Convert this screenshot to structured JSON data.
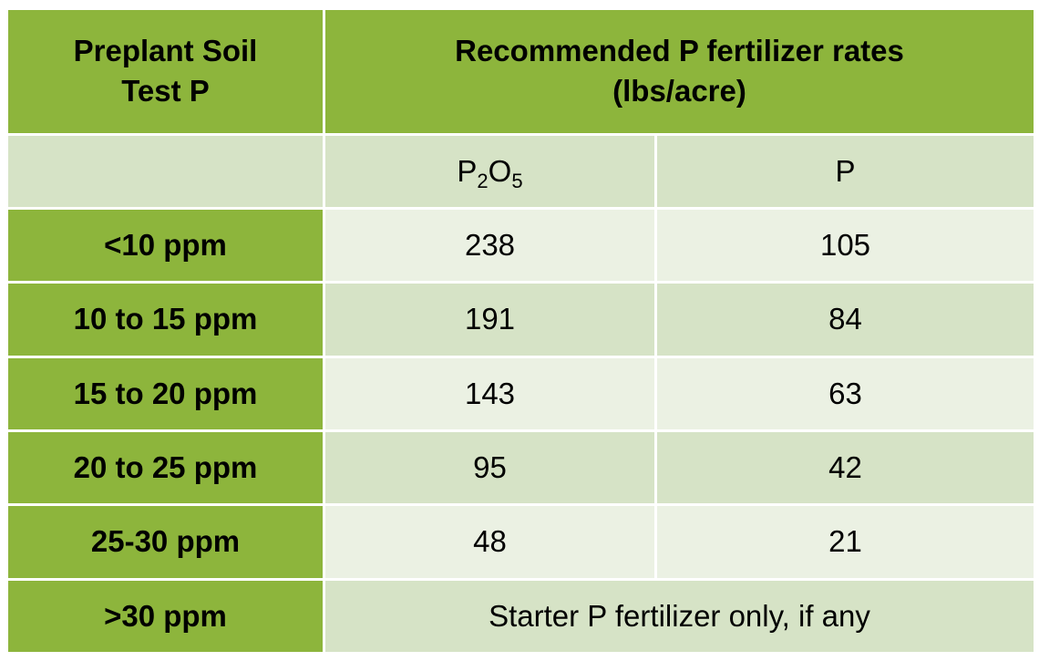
{
  "header": {
    "col1_line1": "Preplant Soil",
    "col1_line2": "Test P",
    "col2_line1": "Recommended P fertilizer rates",
    "col2_line2": "(lbs/acre)"
  },
  "subheader": {
    "p2o5_base1": "P",
    "p2o5_sub1": "2",
    "p2o5_base2": "O",
    "p2o5_sub2": "5",
    "p": "P"
  },
  "rows": [
    {
      "range": "<10 ppm",
      "p2o5": "238",
      "p": "105"
    },
    {
      "range": "10 to 15 ppm",
      "p2o5": "191",
      "p": "84"
    },
    {
      "range": "15 to 20 ppm",
      "p2o5": "143",
      "p": "63"
    },
    {
      "range": "20 to 25 ppm",
      "p2o5": "95",
      "p": "42"
    },
    {
      "range": "25-30 ppm",
      "p2o5": "48",
      "p": "21"
    }
  ],
  "last_row": {
    "range": ">30 ppm",
    "note": "Starter P fertilizer only, if any"
  },
  "colors": {
    "header_green": "#8db53c",
    "shade_dark": "#d6e3c6",
    "shade_light": "#ebf1e3"
  }
}
